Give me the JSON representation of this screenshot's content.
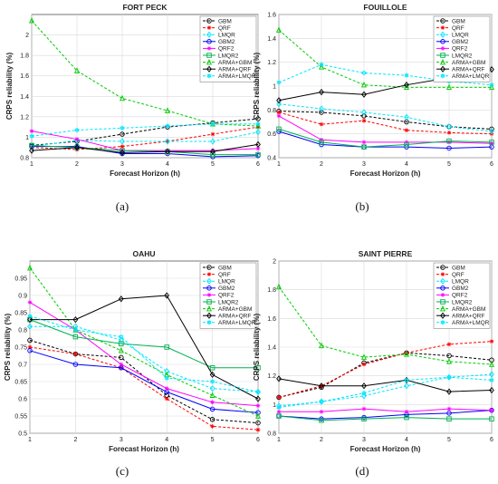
{
  "legend_labels": [
    "GBM",
    "QRF",
    "LMQR",
    "GBM2",
    "QRF2",
    "LMQR2",
    "ARMA+GBM",
    "ARMA+QRF",
    "ARMA+LMQR"
  ],
  "series_colors": [
    "#000000",
    "#ff0000",
    "#00e5ff",
    "#0000ff",
    "#ff00ff",
    "#00b050",
    "#00cc00",
    "#000000",
    "#00e5ff"
  ],
  "chart_data": [
    {
      "type": "line",
      "title": "FORT PECK",
      "caption": "(a)",
      "xlabel": "Forecast Horizon (h)",
      "ylabel": "CRPS reliability (%)",
      "x": [
        1,
        2,
        3,
        4,
        5,
        6
      ],
      "xticks": [
        "1",
        "2",
        "3",
        "4",
        "5",
        "6"
      ],
      "ylim": [
        0.8,
        2.2
      ],
      "yticks": [
        0.8,
        1,
        1.2,
        1.4,
        1.6,
        1.8,
        2
      ],
      "ytick_labels": [
        "0.8",
        "1",
        "1.2",
        "1.4",
        "1.6",
        "1.8",
        "2"
      ],
      "legend_position": "top-right",
      "grid": true,
      "series": [
        {
          "name": "GBM",
          "values": [
            0.92,
            0.96,
            1.03,
            1.1,
            1.14,
            1.18
          ]
        },
        {
          "name": "QRF",
          "values": [
            0.9,
            0.88,
            0.91,
            0.96,
            1.03,
            1.1
          ]
        },
        {
          "name": "LMQR",
          "values": [
            0.91,
            0.97,
            0.96,
            0.96,
            0.96,
            1.05
          ]
        },
        {
          "name": "GBM2",
          "values": [
            0.91,
            0.91,
            0.84,
            0.84,
            0.81,
            0.82
          ]
        },
        {
          "name": "QRF2",
          "values": [
            1.06,
            0.98,
            0.87,
            0.87,
            0.87,
            0.89
          ]
        },
        {
          "name": "LMQR2",
          "values": [
            0.92,
            0.9,
            0.87,
            0.86,
            0.83,
            0.83
          ]
        },
        {
          "name": "ARMA+GBM",
          "values": [
            2.14,
            1.65,
            1.38,
            1.26,
            1.13,
            1.11
          ]
        },
        {
          "name": "ARMA+QRF",
          "values": [
            0.87,
            0.9,
            0.85,
            0.86,
            0.86,
            0.93
          ]
        },
        {
          "name": "ARMA+LMQR",
          "values": [
            1.01,
            1.07,
            1.09,
            1.11,
            1.13,
            1.13
          ]
        }
      ]
    },
    {
      "type": "line",
      "title": "FOUILLOLE",
      "caption": "(b)",
      "xlabel": "Forecast Horizon (h)",
      "ylabel": "CRPS reliability (%)",
      "x": [
        1,
        2,
        3,
        4,
        5,
        6
      ],
      "xticks": [
        "1",
        "2",
        "3",
        "4",
        "5",
        "6"
      ],
      "ylim": [
        0.4,
        1.6
      ],
      "yticks": [
        0.4,
        0.6,
        0.8,
        1,
        1.2,
        1.4,
        1.6
      ],
      "ytick_labels": [
        "0.4",
        "0.6",
        "0.8",
        "1",
        "1.2",
        "1.4",
        "1.6"
      ],
      "legend_position": "top-right",
      "grid": true,
      "series": [
        {
          "name": "GBM",
          "values": [
            0.79,
            0.78,
            0.75,
            0.7,
            0.66,
            0.64
          ]
        },
        {
          "name": "QRF",
          "values": [
            0.78,
            0.68,
            0.71,
            0.63,
            0.61,
            0.6
          ]
        },
        {
          "name": "LMQR",
          "values": [
            0.85,
            0.81,
            0.78,
            0.74,
            0.66,
            0.62
          ]
        },
        {
          "name": "GBM2",
          "values": [
            0.62,
            0.51,
            0.49,
            0.49,
            0.48,
            0.49
          ]
        },
        {
          "name": "QRF2",
          "values": [
            0.75,
            0.55,
            0.53,
            0.53,
            0.53,
            0.52
          ]
        },
        {
          "name": "LMQR2",
          "values": [
            0.64,
            0.53,
            0.49,
            0.51,
            0.54,
            0.53
          ]
        },
        {
          "name": "ARMA+GBM",
          "values": [
            1.47,
            1.16,
            1.01,
            0.99,
            0.99,
            0.99
          ]
        },
        {
          "name": "ARMA+QRF",
          "values": [
            0.88,
            0.95,
            0.93,
            1.01,
            1.07,
            1.14
          ]
        },
        {
          "name": "ARMA+LMQR",
          "values": [
            1.03,
            1.18,
            1.11,
            1.09,
            1.04,
            1.01
          ]
        }
      ]
    },
    {
      "type": "line",
      "title": "OAHU",
      "caption": "(c)",
      "xlabel": "Forecast Horizon (h)",
      "ylabel": "CRPS reliability (%)",
      "x": [
        1,
        2,
        3,
        4,
        5,
        6
      ],
      "xticks": [
        "1",
        "2",
        "3",
        "4",
        "5",
        "6"
      ],
      "ylim": [
        0.5,
        1.0
      ],
      "yticks": [
        0.5,
        0.55,
        0.6,
        0.65,
        0.7,
        0.75,
        0.8,
        0.85,
        0.9,
        0.95
      ],
      "ytick_labels": [
        "0.5",
        "0.55",
        "0.6",
        "0.65",
        "0.7",
        "0.75",
        "0.8",
        "0.85",
        "0.9",
        "0.95"
      ],
      "legend_position": "top-right",
      "grid": true,
      "series": [
        {
          "name": "GBM",
          "values": [
            0.77,
            0.73,
            0.72,
            0.61,
            0.54,
            0.53
          ]
        },
        {
          "name": "QRF",
          "values": [
            0.75,
            0.73,
            0.69,
            0.6,
            0.52,
            0.51
          ]
        },
        {
          "name": "LMQR",
          "values": [
            0.81,
            0.81,
            0.77,
            0.68,
            0.63,
            0.62
          ]
        },
        {
          "name": "GBM2",
          "values": [
            0.74,
            0.7,
            0.69,
            0.62,
            0.57,
            0.56
          ]
        },
        {
          "name": "QRF2",
          "values": [
            0.88,
            0.8,
            0.7,
            0.63,
            0.59,
            0.58
          ]
        },
        {
          "name": "LMQR2",
          "values": [
            0.83,
            0.78,
            0.76,
            0.75,
            0.69,
            0.69
          ]
        },
        {
          "name": "ARMA+GBM",
          "values": [
            0.98,
            0.8,
            0.74,
            0.67,
            0.61,
            0.55
          ]
        },
        {
          "name": "ARMA+QRF",
          "values": [
            0.83,
            0.83,
            0.89,
            0.9,
            0.67,
            0.6
          ]
        },
        {
          "name": "ARMA+LMQR",
          "values": [
            0.84,
            0.8,
            0.78,
            0.66,
            0.65,
            0.62
          ]
        }
      ]
    },
    {
      "type": "line",
      "title": "SAINT PIERRE",
      "caption": "(d)",
      "xlabel": "Forecast Horizon (h)",
      "ylabel": "CRPS reliability (%)",
      "x": [
        1,
        2,
        3,
        4,
        5,
        6
      ],
      "xticks": [
        "1",
        "2",
        "3",
        "4",
        "5",
        "6"
      ],
      "ylim": [
        0.8,
        2.0
      ],
      "yticks": [
        0.8,
        1,
        1.2,
        1.4,
        1.6,
        1.8,
        2
      ],
      "ytick_labels": [
        "0.8",
        "1",
        "1.2",
        "1.4",
        "1.6",
        "1.8",
        "2"
      ],
      "legend_position": "top-right",
      "grid": true,
      "series": [
        {
          "name": "GBM",
          "values": [
            1.05,
            1.12,
            1.29,
            1.36,
            1.34,
            1.31
          ]
        },
        {
          "name": "QRF",
          "values": [
            1.05,
            1.13,
            1.28,
            1.36,
            1.42,
            1.44
          ]
        },
        {
          "name": "LMQR",
          "values": [
            0.99,
            1.02,
            1.06,
            1.13,
            1.19,
            1.21
          ]
        },
        {
          "name": "GBM2",
          "values": [
            0.92,
            0.9,
            0.91,
            0.93,
            0.94,
            0.96
          ]
        },
        {
          "name": "QRF2",
          "values": [
            0.95,
            0.95,
            0.97,
            0.95,
            0.97,
            0.96
          ]
        },
        {
          "name": "LMQR2",
          "values": [
            0.92,
            0.89,
            0.9,
            0.91,
            0.9,
            0.9
          ]
        },
        {
          "name": "ARMA+GBM",
          "values": [
            1.82,
            1.41,
            1.33,
            1.35,
            1.3,
            1.28
          ]
        },
        {
          "name": "ARMA+QRF",
          "values": [
            1.18,
            1.13,
            1.13,
            1.17,
            1.09,
            1.1
          ]
        },
        {
          "name": "ARMA+LMQR",
          "values": [
            0.98,
            1.02,
            1.08,
            1.17,
            1.19,
            1.17
          ]
        }
      ]
    }
  ]
}
